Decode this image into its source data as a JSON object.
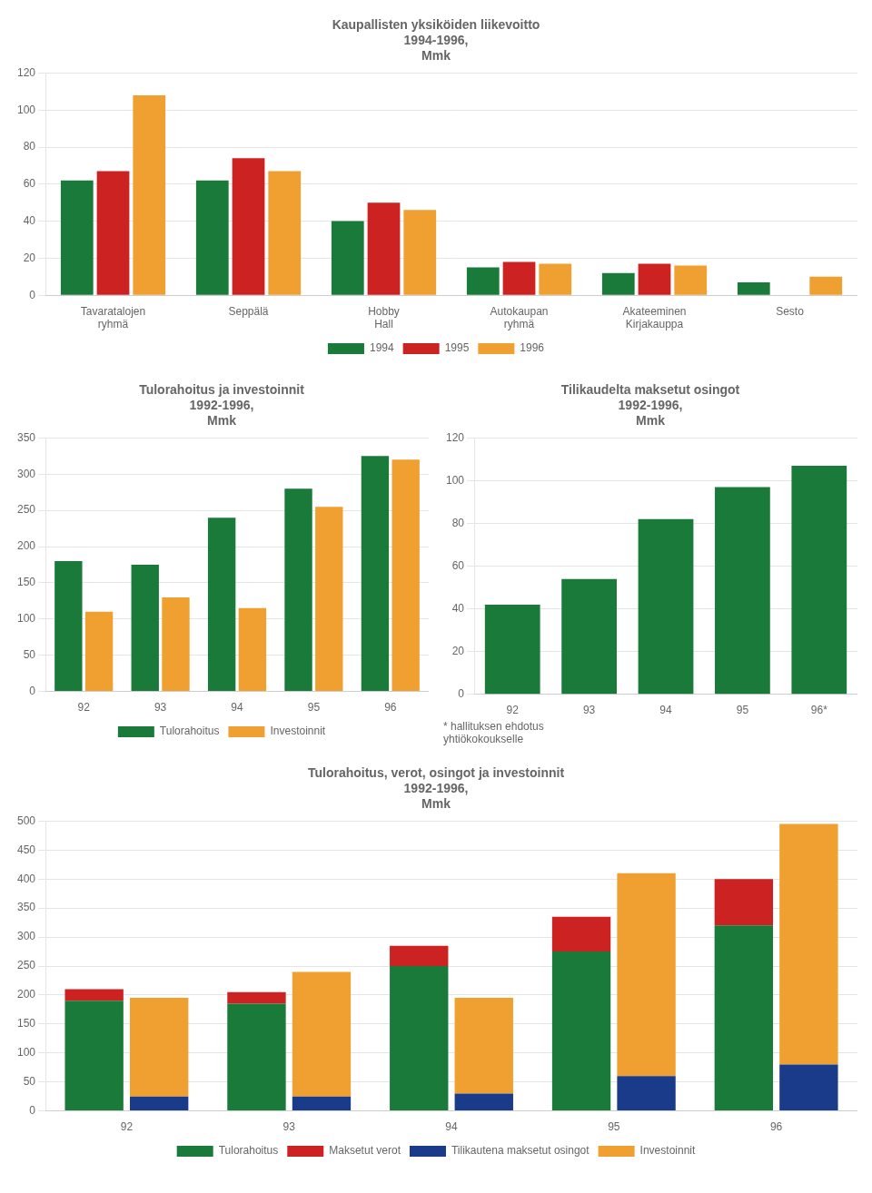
{
  "chart_data": [
    {
      "type": "bar",
      "title": "Kaupallisten yksiköiden liikevoitto\n1994-1996,\nMmk",
      "categories": [
        "Tavaratalojen\nryhmä",
        "Seppälä",
        "Hobby\nHall",
        "Autokaupan\nryhmä",
        "Akateeminen\nKirjakauppa",
        "Sesto"
      ],
      "series": [
        {
          "name": "1994",
          "color": "#1a7a3a",
          "values": [
            62,
            62,
            40,
            15,
            12,
            7
          ]
        },
        {
          "name": "1995",
          "color": "#cc2222",
          "values": [
            67,
            74,
            50,
            18,
            17,
            0
          ]
        },
        {
          "name": "1996",
          "color": "#f0a030",
          "values": [
            108,
            67,
            46,
            17,
            16,
            10
          ]
        }
      ],
      "ylim": [
        0,
        120
      ],
      "yticks": [
        0,
        20,
        40,
        60,
        80,
        100,
        120
      ],
      "grid": true,
      "legend": "bottom"
    },
    {
      "type": "bar",
      "title": "Tulorahoitus ja investoinnit\n1992-1996,\nMmk",
      "categories": [
        "92",
        "93",
        "94",
        "95",
        "96"
      ],
      "series": [
        {
          "name": "Tulorahoitus",
          "color": "#1a7a3a",
          "values": [
            180,
            175,
            240,
            280,
            325
          ]
        },
        {
          "name": "Investoinnit",
          "color": "#f0a030",
          "values": [
            110,
            130,
            115,
            255,
            320
          ]
        }
      ],
      "ylim": [
        0,
        350
      ],
      "yticks": [
        0,
        50,
        100,
        150,
        200,
        250,
        300,
        350
      ],
      "grid": true,
      "legend": "bottom"
    },
    {
      "type": "bar",
      "title": "Tilikaudelta maksetut osingot\n1992-1996,\nMmk",
      "categories": [
        "92",
        "93",
        "94",
        "95",
        "96*"
      ],
      "values": [
        42,
        54,
        82,
        97,
        107
      ],
      "color": "#1a7a3a",
      "ylim": [
        0,
        120
      ],
      "yticks": [
        0,
        20,
        40,
        60,
        80,
        100,
        120
      ],
      "grid": true,
      "annotations": [
        "* hallituksen ehdotus",
        "yhtiökokoukselle"
      ]
    },
    {
      "type": "bar",
      "title": "Tulorahoitus, verot, osingot ja investoinnit\n1992-1996,\nMmk",
      "categories": [
        "92",
        "93",
        "94",
        "95",
        "96"
      ],
      "series": [
        {
          "name": "Tulorahoitus",
          "color": "#1a7a3a",
          "values": [
            190,
            185,
            250,
            275,
            320
          ]
        },
        {
          "name": "Maksetut verot",
          "color": "#cc2222",
          "values": [
            20,
            20,
            35,
            60,
            80
          ]
        },
        {
          "name": "Tilikautena maksetut osingot",
          "color": "#1a3a8a",
          "values": [
            25,
            25,
            30,
            60,
            80
          ]
        },
        {
          "name": "Investoinnit",
          "color": "#f0a030",
          "values": [
            170,
            215,
            165,
            350,
            415
          ]
        }
      ],
      "stacked": [
        [
          "Tulorahoitus",
          "Maksetut verot"
        ],
        [
          "Tilikautena maksetut osingot",
          "Investoinnit"
        ]
      ],
      "ylim": [
        0,
        500
      ],
      "yticks": [
        0,
        50,
        100,
        150,
        200,
        250,
        300,
        350,
        400,
        450,
        500
      ],
      "grid": true,
      "legend": "bottom"
    }
  ]
}
